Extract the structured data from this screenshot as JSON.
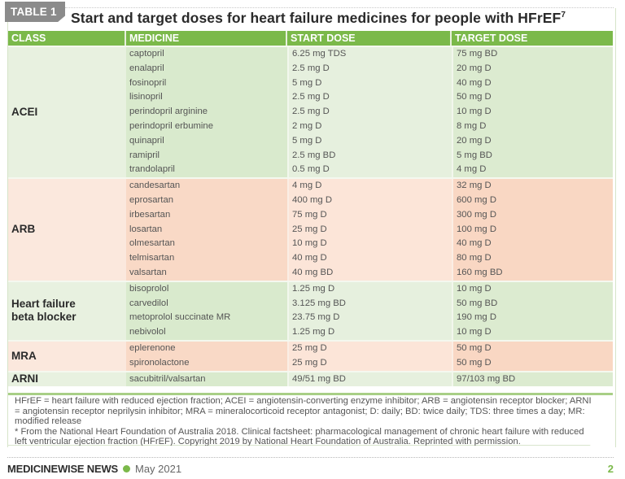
{
  "table_tag": "TABLE 1",
  "title": "Start and target doses for heart failure medicines for people with HFrEF",
  "title_superscript": "7",
  "headers": {
    "class": "CLASS",
    "medicine": "MEDICINE",
    "start_dose": "START DOSE",
    "target_dose": "TARGET DOSE"
  },
  "colors": {
    "header_green": "#7bb94a",
    "green_row": "#e6f0de",
    "orange_row": "#fce5d8",
    "table_tag_gray": "#8b8b8b"
  },
  "groups": [
    {
      "class": "ACEI",
      "tint": "green",
      "rows": [
        {
          "medicine": "captopril",
          "start": "6.25 mg TDS",
          "target": "75 mg BD"
        },
        {
          "medicine": "enalapril",
          "start": "2.5 mg D",
          "target": "20 mg D"
        },
        {
          "medicine": "fosinopril",
          "start": "5 mg D",
          "target": "40 mg D"
        },
        {
          "medicine": "lisinopril",
          "start": "2.5 mg D",
          "target": "50 mg D"
        },
        {
          "medicine": "perindopril arginine",
          "start": "2.5 mg D",
          "target": "10 mg D"
        },
        {
          "medicine": "perindopril erbumine",
          "start": "2 mg D",
          "target": "8 mg D"
        },
        {
          "medicine": "quinapril",
          "start": "5 mg D",
          "target": "20 mg D"
        },
        {
          "medicine": "ramipril",
          "start": "2.5 mg BD",
          "target": "5 mg BD"
        },
        {
          "medicine": "trandolapril",
          "start": "0.5 mg D",
          "target": "4 mg D"
        }
      ]
    },
    {
      "class": "ARB",
      "tint": "orange",
      "rows": [
        {
          "medicine": "candesartan",
          "start": "4 mg D",
          "target": "32 mg D"
        },
        {
          "medicine": "eprosartan",
          "start": "400 mg D",
          "target": "600 mg D"
        },
        {
          "medicine": "irbesartan",
          "start": "75 mg D",
          "target": "300 mg D"
        },
        {
          "medicine": "losartan",
          "start": "25 mg D",
          "target": "100 mg D"
        },
        {
          "medicine": "olmesartan",
          "start": "10 mg D",
          "target": "40 mg D"
        },
        {
          "medicine": "telmisartan",
          "start": "40 mg D",
          "target": "80 mg D"
        },
        {
          "medicine": "valsartan",
          "start": "40 mg BD",
          "target": "160 mg BD"
        }
      ]
    },
    {
      "class": "Heart failure beta blocker",
      "tint": "green",
      "rows": [
        {
          "medicine": "bisoprolol",
          "start": "1.25 mg D",
          "target": "10 mg D"
        },
        {
          "medicine": "carvedilol",
          "start": "3.125 mg BD",
          "target": "50 mg BD"
        },
        {
          "medicine": "metoprolol succinate MR",
          "start": "23.75 mg D",
          "target": "190 mg D"
        },
        {
          "medicine": "nebivolol",
          "start": "1.25 mg D",
          "target": "10 mg D"
        }
      ]
    },
    {
      "class": "MRA",
      "tint": "orange",
      "rows": [
        {
          "medicine": "eplerenone",
          "start": "25 mg D",
          "target": "50 mg D"
        },
        {
          "medicine": "spironolactone",
          "start": "25 mg D",
          "target": "50 mg D"
        }
      ]
    },
    {
      "class": "ARNI",
      "tint": "green",
      "rows": [
        {
          "medicine": "sacubitril/valsartan",
          "start": "49/51 mg BD",
          "target": "97/103 mg BD"
        }
      ]
    }
  ],
  "notes": {
    "abbreviations": "HFrEF = heart failure with reduced ejection fraction; ACEI = angiotensin-converting enzyme inhibitor; ARB = angiotensin receptor blocker; ARNI = angiotensin receptor neprilysin inhibitor; MRA = mineralocorticoid receptor antagonist; D: daily; BD: twice daily; TDS: three times a day; MR: modified release",
    "source": "* From the National Heart Foundation of Australia 2018. Clinical factsheet: pharmacological management of chronic heart failure with reduced left ventricular ejection fraction (HFrEF). Copyright 2019 by National Heart Foundation of Australia. Reprinted with permission."
  },
  "footer": {
    "brand": "MEDICINEWISE NEWS",
    "date": "May 2021",
    "page_number": "2"
  }
}
